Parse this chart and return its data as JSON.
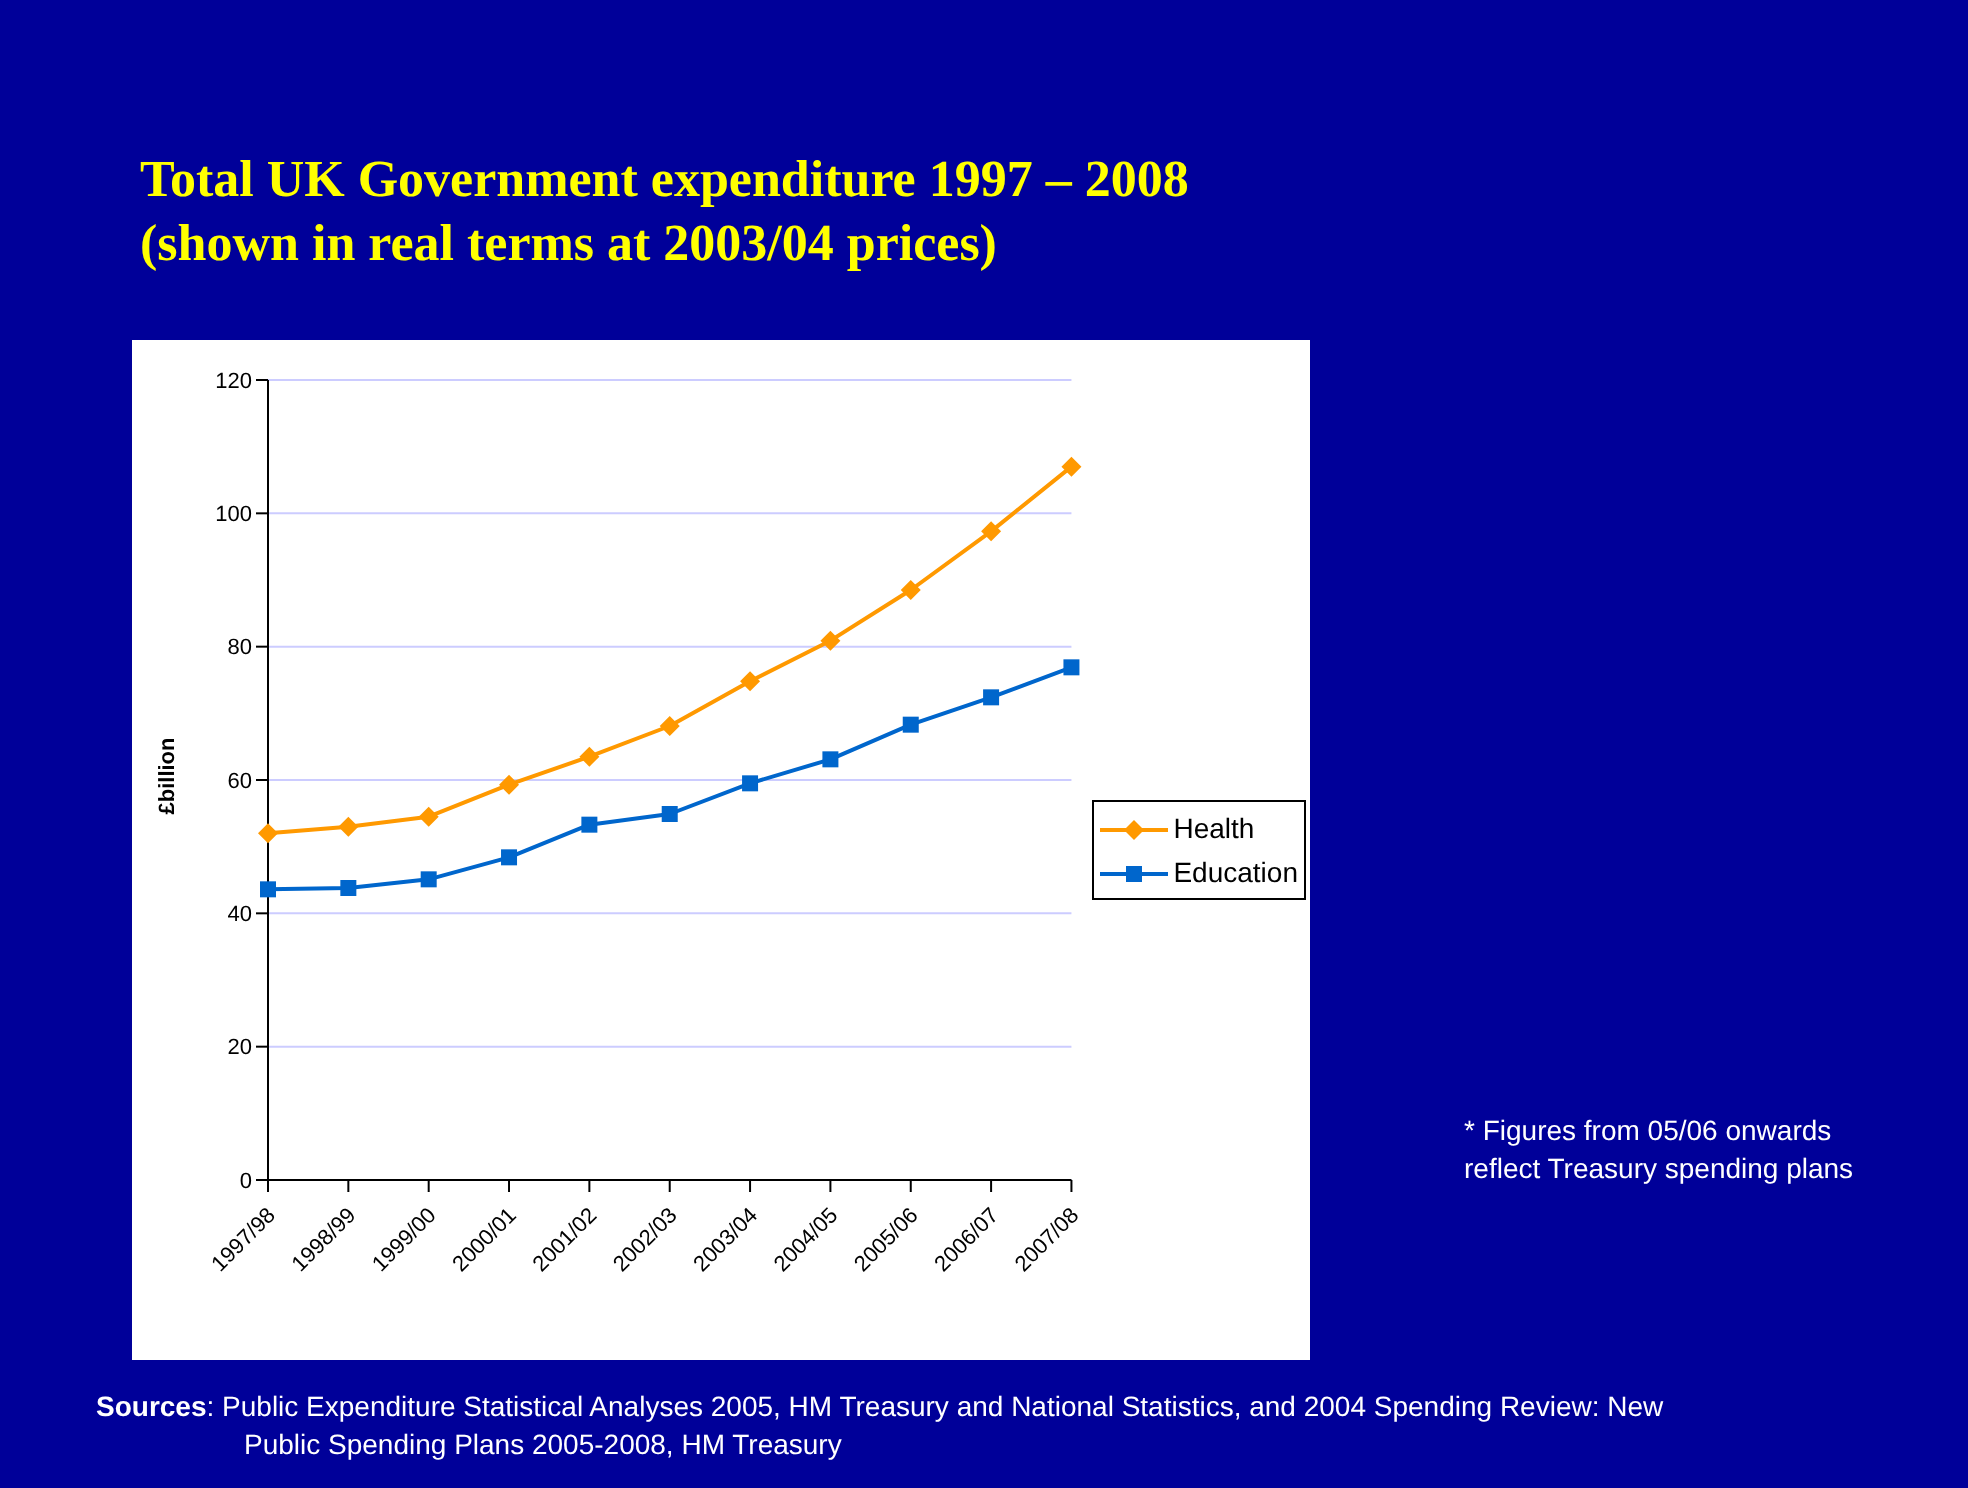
{
  "chart_data": {
    "type": "line",
    "title": "Total UK Government expenditure 1997 – 2008\n(shown in real terms at 2003/04 prices)",
    "ylabel": "£billion",
    "categories": [
      "1997/98",
      "1998/99",
      "1999/00",
      "2000/01",
      "2001/02",
      "2002/03",
      "2003/04",
      "2004/05",
      "2005/06",
      "2006/07",
      "2007/08"
    ],
    "series": [
      {
        "name": "Health",
        "color": "#ff9900",
        "marker": "diamond",
        "values": [
          52,
          53,
          54.5,
          59.3,
          63.5,
          68.1,
          74.8,
          80.9,
          88.5,
          97.3,
          107
        ]
      },
      {
        "name": "Education",
        "color": "#0066cc",
        "marker": "square",
        "values": [
          43.6,
          43.8,
          45.1,
          48.4,
          53.3,
          54.9,
          59.5,
          63.1,
          68.3,
          72.4,
          76.9
        ]
      }
    ],
    "ylim": [
      0,
      120
    ],
    "yticks": [
      0,
      20,
      40,
      60,
      80,
      100,
      120
    ],
    "grid": "y",
    "legend": "right",
    "line_style": "solid",
    "annotations": [
      "* Figures from 05/06 onwards reflect Treasury spending plans",
      "Sources: Public Expenditure Statistical Analyses 2005, HM Treasury and National Statistics, and 2004 Spending Review: New Public Spending Plans 2005-2008, HM Treasury"
    ]
  }
}
